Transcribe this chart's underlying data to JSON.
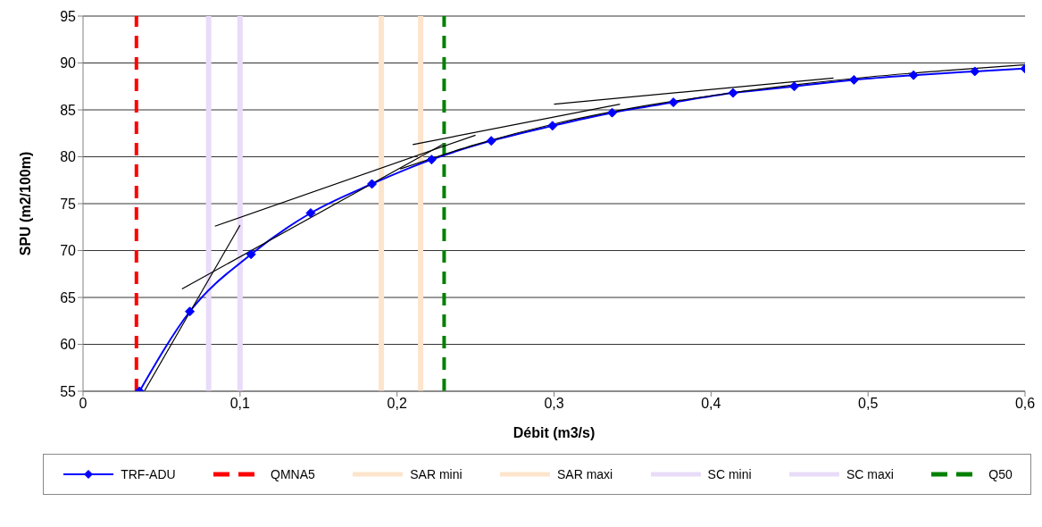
{
  "chart_data": {
    "type": "line",
    "xlabel": "Débit (m3/s)",
    "ylabel": "SPU (m2/100m)",
    "xlim": [
      0,
      0.6
    ],
    "xticks": [
      0,
      {
        "value": 0.1,
        "label": "0,1"
      },
      {
        "value": 0.2,
        "label": "0,2"
      },
      {
        "value": 0.3,
        "label": "0,3"
      },
      {
        "value": 0.4,
        "label": "0,4"
      },
      {
        "value": 0.5,
        "label": "0,5"
      },
      {
        "value": 0.6,
        "label": "0,6"
      }
    ],
    "ylim": [
      55,
      95
    ],
    "yticks": [
      55,
      60,
      65,
      70,
      75,
      80,
      85,
      90,
      95
    ],
    "grid": "y",
    "legend": "bottom",
    "marker": "diamond",
    "series": [
      {
        "name": "TRF-ADU",
        "color": "#0000ff",
        "x": [
          0.036,
          0.068,
          0.107,
          0.145,
          0.184,
          0.222,
          0.26,
          0.299,
          0.337,
          0.376,
          0.414,
          0.453,
          0.491,
          0.529,
          0.568,
          0.6
        ],
        "values": [
          55,
          63.5,
          69.6,
          74.0,
          77.1,
          79.7,
          81.7,
          83.3,
          84.7,
          85.8,
          86.8,
          87.5,
          88.2,
          88.7,
          89.1,
          89.4
        ]
      },
      {
        "type": "line",
        "marker": "none",
        "color": "#000000",
        "x": [
          0.039,
          0.1
        ],
        "values": [
          55,
          72.7
        ]
      },
      {
        "type": "line",
        "marker": "none",
        "color": "#000000",
        "x": [
          0.063,
          0.229
        ],
        "values": [
          65.9,
          81.3
        ]
      },
      {
        "type": "line",
        "marker": "none",
        "color": "#000000",
        "x": [
          0.084,
          0.25
        ],
        "values": [
          72.6,
          82.3
        ]
      },
      {
        "type": "line",
        "marker": "none",
        "color": "#000000",
        "x": [
          0.21,
          0.342
        ],
        "values": [
          81.3,
          85.6
        ]
      },
      {
        "type": "line",
        "marker": "none",
        "color": "#000000",
        "x": [
          0.3,
          0.478
        ],
        "values": [
          85.6,
          88.4
        ]
      },
      {
        "type": "line",
        "marker": "none",
        "color": "#000000",
        "x": [
          0.202,
          0.25,
          0.3,
          0.35,
          0.4,
          0.45,
          0.5,
          0.55,
          0.6
        ],
        "values": [
          78.7,
          81.3,
          83.5,
          85.2,
          86.5,
          87.6,
          88.5,
          89.2,
          89.8
        ]
      }
    ],
    "ref_lines": [
      {
        "axis": "x",
        "value": 0.034,
        "label": "QMNA5",
        "color": "#ff0000",
        "line_style": "dashed"
      },
      {
        "axis": "x",
        "value": 0.19,
        "label": "SAR mini",
        "color": "#fde4cc",
        "line_style": "solid"
      },
      {
        "axis": "x",
        "value": 0.215,
        "label": "SAR maxi",
        "color": "#fde4cc",
        "line_style": "solid"
      },
      {
        "axis": "x",
        "value": 0.08,
        "label": "SC mini",
        "color": "#e8dcf8",
        "line_style": "solid"
      },
      {
        "axis": "x",
        "value": 0.1,
        "label": "SC maxi",
        "color": "#e8dcf8",
        "line_style": "solid"
      },
      {
        "axis": "x",
        "value": 0.23,
        "label": "Q50",
        "color": "#008000",
        "line_style": "dashed"
      }
    ]
  }
}
